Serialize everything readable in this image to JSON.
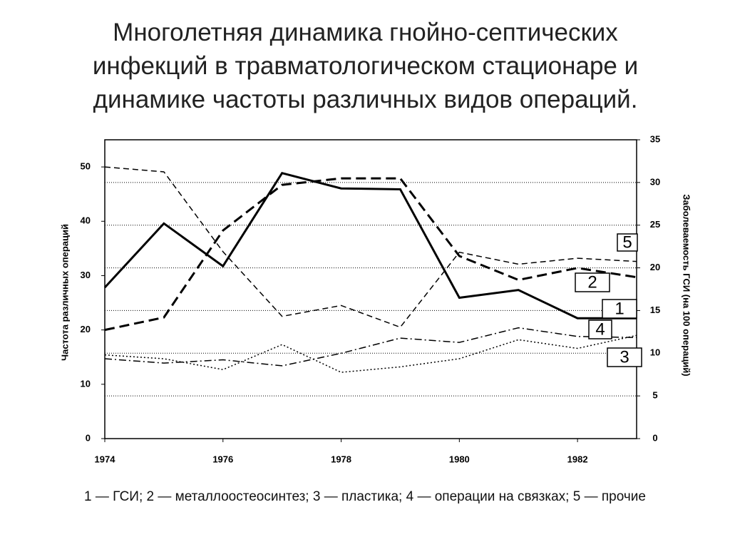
{
  "chart_data": {
    "type": "line",
    "title": "Многолетняя динамика гнойно-септических инфекций  в травматологическом стационаре и динамике частоты различных видов операций.",
    "ylabel": "Частота различных операций",
    "y2label": "Заболеваемость ГСИ (на 100 операций)",
    "caption": "1 — ГСИ; 2 — металлоостеосинтез; 3 — пластика; 4 — операции на связках; 5 — прочие",
    "x": [
      1974,
      1975,
      1976,
      1977,
      1978,
      1979,
      1980,
      1981,
      1982,
      1983
    ],
    "xlim": [
      1974,
      1983
    ],
    "xticks": [
      1974,
      1976,
      1978,
      1980,
      1982
    ],
    "ylim": [
      0,
      55
    ],
    "yticks": [
      0,
      10,
      20,
      30,
      40,
      50
    ],
    "y2lim": [
      0,
      35
    ],
    "y2ticks": [
      0,
      5,
      10,
      15,
      20,
      25,
      30,
      35
    ],
    "grid": true,
    "series": [
      {
        "name": "1",
        "color": "#000000",
        "axis": "y2",
        "values": [
          17.7,
          25.2,
          20.2,
          31.1,
          29.3,
          29.2,
          16.5,
          17.4,
          14.1,
          14.1
        ]
      },
      {
        "name": "2",
        "color": "#000000",
        "values": [
          20.0,
          22.3,
          38.3,
          46.7,
          47.9,
          47.9,
          33.6,
          29.2,
          31.4,
          29.7
        ]
      },
      {
        "name": "3",
        "color": "#000000",
        "values": [
          15.4,
          14.7,
          12.7,
          17.3,
          12.2,
          13.2,
          14.7,
          18.2,
          16.6,
          19.0
        ]
      },
      {
        "name": "4",
        "color": "#000000",
        "values": [
          14.7,
          13.9,
          14.5,
          13.4,
          15.7,
          18.5,
          17.7,
          20.4,
          18.8,
          18.6
        ]
      },
      {
        "name": "5",
        "color": "#000000",
        "values": [
          50.0,
          49.1,
          34.4,
          22.5,
          24.5,
          20.5,
          34.3,
          32.1,
          33.2,
          32.6
        ]
      }
    ]
  }
}
